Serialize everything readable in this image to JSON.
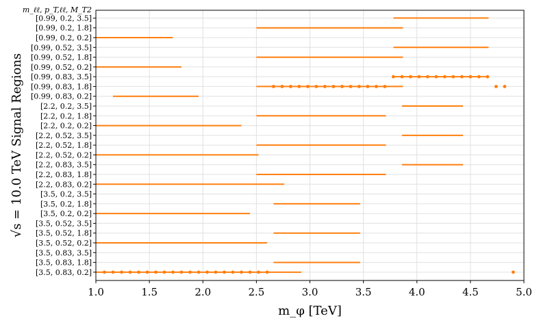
{
  "chart_data": {
    "type": "range",
    "xlabel": "m_φ [TeV]",
    "ylabel": "√s = 10.0 TeV Signal Regions",
    "top_label": "m_ℓℓ, p_T,ℓℓ, M_T2",
    "xlim": [
      1.0,
      5.0
    ],
    "xticks": [
      "1.0",
      "1.5",
      "2.0",
      "2.5",
      "3.0",
      "3.5",
      "4.0",
      "4.5",
      "5.0"
    ],
    "grid": true,
    "color": "#ff7f0e",
    "regions": [
      {
        "label": "[0.99, 0.2, 3.5]",
        "segments": [
          [
            3.78,
            4.67
          ]
        ],
        "dots": []
      },
      {
        "label": "[0.99, 0.2, 1.8]",
        "segments": [
          [
            2.5,
            3.87
          ]
        ],
        "dots": []
      },
      {
        "label": "[0.99, 0.2, 0.2]",
        "segments": [
          [
            1.0,
            1.72
          ]
        ],
        "dots": []
      },
      {
        "label": "[0.99, 0.52, 3.5]",
        "segments": [
          [
            3.78,
            4.67
          ]
        ],
        "dots": []
      },
      {
        "label": "[0.99, 0.52, 1.8]",
        "segments": [
          [
            2.5,
            3.87
          ]
        ],
        "dots": []
      },
      {
        "label": "[0.99, 0.52, 0.2]",
        "segments": [
          [
            1.0,
            1.8
          ]
        ],
        "dots": []
      },
      {
        "label": "[0.99, 0.83, 3.5]",
        "segments": [
          [
            3.78,
            4.67
          ]
        ],
        "dots": [
          3.78,
          3.86,
          3.94,
          4.02,
          4.1,
          4.18,
          4.26,
          4.34,
          4.42,
          4.5,
          4.58,
          4.66
        ]
      },
      {
        "label": "[0.99, 0.83, 1.8]",
        "segments": [
          [
            2.5,
            3.87
          ]
        ],
        "dots": [
          2.66,
          2.74,
          2.82,
          2.9,
          2.98,
          3.06,
          3.14,
          3.22,
          3.3,
          3.38,
          3.46,
          3.54,
          3.62,
          3.7,
          4.74,
          4.82
        ]
      },
      {
        "label": "[0.99, 0.83, 0.2]",
        "segments": [
          [
            1.16,
            1.96
          ]
        ],
        "dots": []
      },
      {
        "label": "[2.2, 0.2, 3.5]",
        "segments": [
          [
            3.86,
            4.43
          ]
        ],
        "dots": []
      },
      {
        "label": "[2.2, 0.2, 1.8]",
        "segments": [
          [
            2.5,
            3.71
          ]
        ],
        "dots": []
      },
      {
        "label": "[2.2, 0.2, 0.2]",
        "segments": [
          [
            1.0,
            2.36
          ]
        ],
        "dots": []
      },
      {
        "label": "[2.2, 0.52, 3.5]",
        "segments": [
          [
            3.86,
            4.43
          ]
        ],
        "dots": []
      },
      {
        "label": "[2.2, 0.52, 1.8]",
        "segments": [
          [
            2.5,
            3.71
          ]
        ],
        "dots": []
      },
      {
        "label": "[2.2, 0.52, 0.2]",
        "segments": [
          [
            1.0,
            2.52
          ]
        ],
        "dots": []
      },
      {
        "label": "[2.2, 0.83, 3.5]",
        "segments": [
          [
            3.86,
            4.43
          ]
        ],
        "dots": []
      },
      {
        "label": "[2.2, 0.83, 1.8]",
        "segments": [
          [
            2.5,
            3.71
          ]
        ],
        "dots": []
      },
      {
        "label": "[2.2, 0.83, 0.2]",
        "segments": [
          [
            1.0,
            2.76
          ]
        ],
        "dots": []
      },
      {
        "label": "[3.5, 0.2, 3.5]",
        "segments": [],
        "dots": []
      },
      {
        "label": "[3.5, 0.2, 1.8]",
        "segments": [
          [
            2.66,
            3.47
          ]
        ],
        "dots": []
      },
      {
        "label": "[3.5, 0.2, 0.2]",
        "segments": [
          [
            1.0,
            2.44
          ]
        ],
        "dots": []
      },
      {
        "label": "[3.5, 0.52, 3.5]",
        "segments": [],
        "dots": []
      },
      {
        "label": "[3.5, 0.52, 1.8]",
        "segments": [
          [
            2.66,
            3.47
          ]
        ],
        "dots": []
      },
      {
        "label": "[3.5, 0.52, 0.2]",
        "segments": [
          [
            1.0,
            2.6
          ]
        ],
        "dots": []
      },
      {
        "label": "[3.5, 0.83, 3.5]",
        "segments": [],
        "dots": []
      },
      {
        "label": "[3.5, 0.83, 1.8]",
        "segments": [
          [
            2.66,
            3.47
          ]
        ],
        "dots": []
      },
      {
        "label": "[3.5, 0.83, 0.2]",
        "segments": [
          [
            1.0,
            2.92
          ]
        ],
        "dots": [
          1.08,
          1.16,
          1.24,
          1.32,
          1.4,
          1.48,
          1.56,
          1.64,
          1.72,
          1.8,
          1.88,
          1.96,
          2.04,
          2.12,
          2.2,
          2.28,
          2.36,
          2.44,
          2.52,
          2.6,
          4.9
        ]
      }
    ]
  }
}
